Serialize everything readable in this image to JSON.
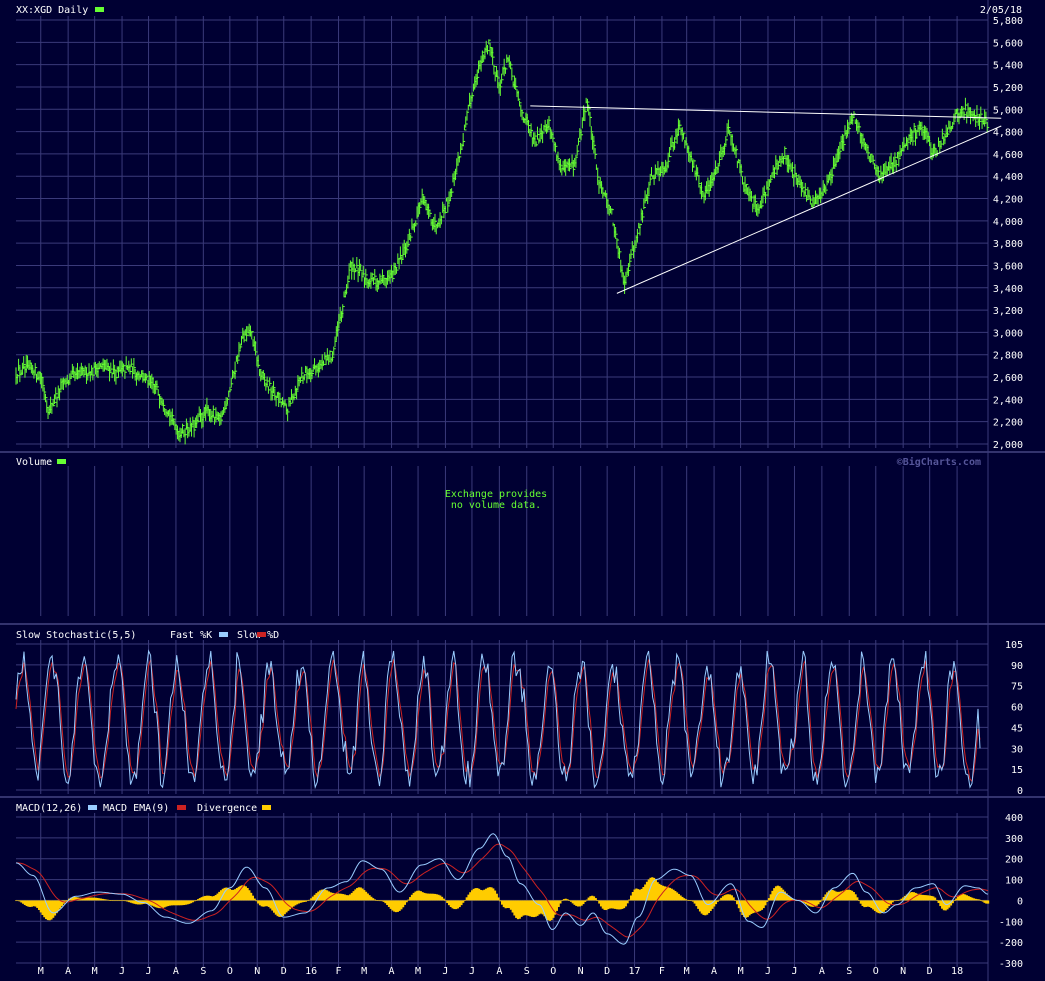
{
  "header": {
    "symbol_label": "XX:XGD Daily",
    "date": "2/05/18"
  },
  "watermark": "©BigCharts.com",
  "colors": {
    "background": "#000033",
    "grid": "#3a3a7a",
    "price": "#66ff33",
    "fast_k": "#99ccff",
    "slow_d": "#cc2222",
    "macd": "#99ccff",
    "macd_ema": "#cc2222",
    "divergence": "#ffcc00",
    "trendline": "#ffffff"
  },
  "chart_data": [
    {
      "type": "ohlc",
      "name": "price",
      "title": "XX:XGD Daily",
      "ylim": [
        2000,
        5800
      ],
      "y_ticks": [
        "2,000",
        "2,200",
        "2,400",
        "2,600",
        "2,800",
        "3,000",
        "3,200",
        "3,400",
        "3,600",
        "3,800",
        "4,000",
        "4,200",
        "4,400",
        "4,600",
        "4,800",
        "5,000",
        "5,200",
        "5,400",
        "5,600",
        "5,800"
      ],
      "x_start": "2015-02-01",
      "x_end": "2018-02-05",
      "x_tick_labels": [
        "M",
        "A",
        "M",
        "J",
        "J",
        "A",
        "S",
        "O",
        "N",
        "D",
        "16",
        "F",
        "M",
        "A",
        "M",
        "J",
        "J",
        "A",
        "S",
        "O",
        "N",
        "D",
        "17",
        "F",
        "M",
        "A",
        "M",
        "J",
        "J",
        "A",
        "S",
        "O",
        "N",
        "D",
        "18"
      ],
      "x_tick_dates": [
        "2015-03-01",
        "2015-04-01",
        "2015-05-01",
        "2015-06-01",
        "2015-07-01",
        "2015-08-01",
        "2015-09-01",
        "2015-10-01",
        "2015-11-01",
        "2015-12-01",
        "2016-01-01",
        "2016-02-01",
        "2016-03-01",
        "2016-04-01",
        "2016-05-01",
        "2016-06-01",
        "2016-07-01",
        "2016-08-01",
        "2016-09-01",
        "2016-10-01",
        "2016-11-01",
        "2016-12-01",
        "2017-01-01",
        "2017-02-01",
        "2017-03-01",
        "2017-04-01",
        "2017-05-01",
        "2017-06-01",
        "2017-07-01",
        "2017-08-01",
        "2017-09-01",
        "2017-10-01",
        "2017-11-01",
        "2017-12-01",
        "2018-01-01"
      ],
      "series_points": [
        [
          "2015-02-01",
          2650
        ],
        [
          "2015-02-15",
          2680
        ],
        [
          "2015-03-01",
          2620
        ],
        [
          "2015-03-10",
          2300
        ],
        [
          "2015-03-25",
          2520
        ],
        [
          "2015-04-10",
          2620
        ],
        [
          "2015-04-25",
          2650
        ],
        [
          "2015-05-10",
          2700
        ],
        [
          "2015-05-25",
          2640
        ],
        [
          "2015-06-10",
          2680
        ],
        [
          "2015-06-25",
          2600
        ],
        [
          "2015-07-10",
          2500
        ],
        [
          "2015-07-25",
          2250
        ],
        [
          "2015-08-05",
          2100
        ],
        [
          "2015-08-20",
          2150
        ],
        [
          "2015-09-05",
          2300
        ],
        [
          "2015-09-20",
          2200
        ],
        [
          "2015-10-01",
          2500
        ],
        [
          "2015-10-15",
          2950
        ],
        [
          "2015-10-25",
          3000
        ],
        [
          "2015-11-05",
          2600
        ],
        [
          "2015-11-20",
          2450
        ],
        [
          "2015-12-05",
          2300
        ],
        [
          "2015-12-20",
          2600
        ],
        [
          "2016-01-10",
          2700
        ],
        [
          "2016-01-25",
          2800
        ],
        [
          "2016-02-05",
          3200
        ],
        [
          "2016-02-15",
          3600
        ],
        [
          "2016-03-01",
          3500
        ],
        [
          "2016-03-15",
          3450
        ],
        [
          "2016-04-01",
          3500
        ],
        [
          "2016-04-20",
          3800
        ],
        [
          "2016-05-05",
          4200
        ],
        [
          "2016-05-20",
          3950
        ],
        [
          "2016-06-05",
          4200
        ],
        [
          "2016-06-20",
          4700
        ],
        [
          "2016-07-05",
          5300
        ],
        [
          "2016-07-20",
          5600
        ],
        [
          "2016-08-01",
          5200
        ],
        [
          "2016-08-10",
          5450
        ],
        [
          "2016-08-25",
          5000
        ],
        [
          "2016-09-10",
          4700
        ],
        [
          "2016-09-25",
          4900
        ],
        [
          "2016-10-10",
          4450
        ],
        [
          "2016-10-25",
          4500
        ],
        [
          "2016-11-08",
          5100
        ],
        [
          "2016-11-20",
          4400
        ],
        [
          "2016-12-05",
          4100
        ],
        [
          "2016-12-20",
          3450
        ],
        [
          "2017-01-05",
          3900
        ],
        [
          "2017-01-20",
          4400
        ],
        [
          "2017-02-05",
          4500
        ],
        [
          "2017-02-20",
          4850
        ],
        [
          "2017-03-05",
          4600
        ],
        [
          "2017-03-20",
          4200
        ],
        [
          "2017-04-05",
          4500
        ],
        [
          "2017-04-18",
          4850
        ],
        [
          "2017-05-05",
          4300
        ],
        [
          "2017-05-20",
          4100
        ],
        [
          "2017-06-05",
          4400
        ],
        [
          "2017-06-20",
          4600
        ],
        [
          "2017-07-05",
          4350
        ],
        [
          "2017-07-20",
          4150
        ],
        [
          "2017-08-05",
          4300
        ],
        [
          "2017-08-20",
          4600
        ],
        [
          "2017-09-05",
          4950
        ],
        [
          "2017-09-20",
          4650
        ],
        [
          "2017-10-05",
          4400
        ],
        [
          "2017-10-20",
          4500
        ],
        [
          "2017-11-05",
          4700
        ],
        [
          "2017-11-20",
          4850
        ],
        [
          "2017-12-05",
          4600
        ],
        [
          "2017-12-20",
          4800
        ],
        [
          "2018-01-05",
          5000
        ],
        [
          "2018-01-20",
          4950
        ],
        [
          "2018-02-05",
          4870
        ]
      ],
      "trendlines": [
        {
          "from": [
            "2016-09-05",
            5030
          ],
          "to": [
            "2018-02-20",
            4920
          ]
        },
        {
          "from": [
            "2016-12-12",
            3350
          ],
          "to": [
            "2018-02-20",
            4850
          ]
        }
      ]
    },
    {
      "type": "placeholder",
      "name": "volume",
      "title": "Volume",
      "message_lines": [
        "Exchange provides",
        "no volume data."
      ]
    },
    {
      "type": "line",
      "name": "stochastic",
      "title": "Slow Stochastic(5,5)",
      "legend": [
        "Fast %K",
        "Slow %D"
      ],
      "ylim": [
        0,
        105
      ],
      "y_ticks": [
        "0",
        "15",
        "30",
        "45",
        "60",
        "75",
        "90",
        "105"
      ],
      "cycle_days": 21,
      "last_value": 30
    },
    {
      "type": "line+bar",
      "name": "macd",
      "title": "MACD(12,26)",
      "legend": [
        "MACD EMA(9)",
        "Divergence"
      ],
      "ylim": [
        -300,
        400
      ],
      "y_ticks": [
        "-300",
        "-200",
        "-100",
        "0",
        "100",
        "200",
        "300",
        "400"
      ],
      "series_points": [
        [
          "2015-02-01",
          180
        ],
        [
          "2015-02-20",
          120
        ],
        [
          "2015-03-15",
          -60
        ],
        [
          "2015-04-10",
          20
        ],
        [
          "2015-05-05",
          40
        ],
        [
          "2015-06-01",
          30
        ],
        [
          "2015-06-25",
          -10
        ],
        [
          "2015-07-20",
          -80
        ],
        [
          "2015-08-15",
          -110
        ],
        [
          "2015-09-10",
          -50
        ],
        [
          "2015-10-01",
          60
        ],
        [
          "2015-10-20",
          160
        ],
        [
          "2015-11-10",
          60
        ],
        [
          "2015-12-01",
          -80
        ],
        [
          "2015-12-25",
          -60
        ],
        [
          "2016-01-20",
          60
        ],
        [
          "2016-02-10",
          90
        ],
        [
          "2016-02-28",
          190
        ],
        [
          "2016-03-20",
          150
        ],
        [
          "2016-04-10",
          40
        ],
        [
          "2016-05-05",
          170
        ],
        [
          "2016-05-25",
          200
        ],
        [
          "2016-06-15",
          100
        ],
        [
          "2016-07-10",
          250
        ],
        [
          "2016-07-25",
          320
        ],
        [
          "2016-08-10",
          210
        ],
        [
          "2016-08-25",
          80
        ],
        [
          "2016-09-15",
          -20
        ],
        [
          "2016-09-30",
          -140
        ],
        [
          "2016-10-15",
          -60
        ],
        [
          "2016-11-01",
          -120
        ],
        [
          "2016-11-15",
          -60
        ],
        [
          "2016-12-01",
          -160
        ],
        [
          "2016-12-20",
          -210
        ],
        [
          "2017-01-05",
          -80
        ],
        [
          "2017-01-25",
          100
        ],
        [
          "2017-02-15",
          150
        ],
        [
          "2017-03-05",
          120
        ],
        [
          "2017-03-25",
          -20
        ],
        [
          "2017-04-20",
          80
        ],
        [
          "2017-05-10",
          -100
        ],
        [
          "2017-05-25",
          -130
        ],
        [
          "2017-06-15",
          40
        ],
        [
          "2017-07-05",
          0
        ],
        [
          "2017-07-25",
          -60
        ],
        [
          "2017-08-15",
          60
        ],
        [
          "2017-09-05",
          130
        ],
        [
          "2017-09-20",
          40
        ],
        [
          "2017-10-10",
          -60
        ],
        [
          "2017-10-25",
          -20
        ],
        [
          "2017-11-15",
          60
        ],
        [
          "2017-12-05",
          80
        ],
        [
          "2017-12-20",
          -20
        ],
        [
          "2018-01-10",
          70
        ],
        [
          "2018-01-25",
          60
        ],
        [
          "2018-02-05",
          30
        ]
      ]
    }
  ]
}
